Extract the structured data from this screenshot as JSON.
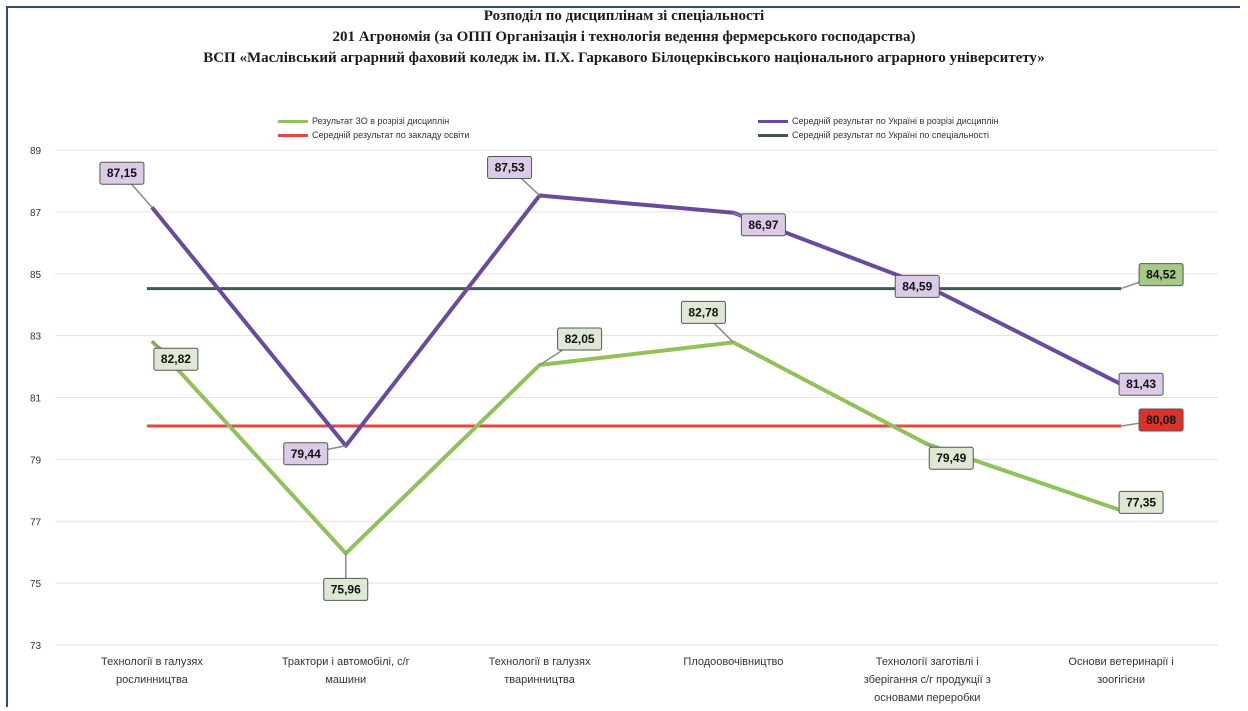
{
  "chart_data": {
    "type": "line",
    "title_lines": [
      "Розподіл по дисциплінам зі спеціальності",
      "201 Агрономія (за ОПП Організація і технологія ведення фермерського господарства)",
      "ВСП «Маслівський аграрний фаховий коледж ім. П.Х. Гаркавого  Білоцерківського національного аграрного університету»"
    ],
    "categories": [
      [
        "Технології в галузях",
        "рослинництва"
      ],
      [
        "Трактори і автомобілі, с/г",
        "машини"
      ],
      [
        "Технології в галузях",
        "тваринництва"
      ],
      [
        "Плодоовочівництво"
      ],
      [
        "Технології заготівлі і",
        "зберігання с/г продукції з",
        "основами переробки"
      ],
      [
        "Основи ветеринарії і",
        "зоогігієни"
      ]
    ],
    "series": [
      {
        "name": "Результат ЗО в розрізі дисциплін",
        "color": "#92c05a",
        "values": [
          82.82,
          75.96,
          82.05,
          82.78,
          79.49,
          77.35
        ],
        "labels": [
          "82,82",
          "75,96",
          "82,05",
          "82,78",
          "79,49",
          "77,35"
        ],
        "label_fill": "#dfe8d4"
      },
      {
        "name": "Середній результат по Україні в розрізі дисциплін",
        "color": "#6a4a9c",
        "values": [
          87.15,
          79.44,
          87.53,
          86.97,
          84.59,
          81.43
        ],
        "labels": [
          "87,15",
          "79,44",
          "87,53",
          "86,97",
          "84,59",
          "81,43"
        ],
        "label_fill": "#dccbe6"
      },
      {
        "name": "Середній результат по закладу освіти",
        "color": "#e04a3f",
        "values": [
          80.08,
          80.08,
          80.08,
          80.08,
          80.08,
          80.08
        ],
        "end_label": "80,08",
        "label_fill": "#d8322a"
      },
      {
        "name": "Середній результат по Україні по спеціальності",
        "color": "#3f5a4c",
        "values": [
          84.52,
          84.52,
          84.52,
          84.52,
          84.52,
          84.52
        ],
        "end_label": "84,52",
        "label_fill": "#a6c98a"
      }
    ],
    "yticks": [
      73,
      75,
      77,
      79,
      81,
      83,
      85,
      87,
      89
    ],
    "ylim": [
      73,
      89
    ],
    "grid": true,
    "legend_position": "top"
  }
}
